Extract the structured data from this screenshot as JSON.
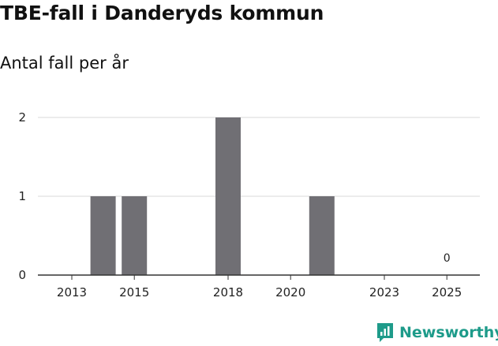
{
  "title": "TBE-fall i Danderyds kommun",
  "subtitle": "Antal fall per år",
  "colors": {
    "bar": "#706f74",
    "grid": "#d9d9d9",
    "axis": "#333333",
    "brand": "#1e9b8a"
  },
  "brand": {
    "name": "Newsworthy",
    "icon": "bar-chart-logo-icon"
  },
  "chart_data": {
    "type": "bar",
    "title": "TBE-fall i Danderyds kommun",
    "subtitle": "Antal fall per år",
    "xlabel": "",
    "ylabel": "",
    "x": [
      2013,
      2014,
      2015,
      2016,
      2017,
      2018,
      2019,
      2020,
      2021,
      2022,
      2023,
      2024,
      2025
    ],
    "values": [
      0,
      1,
      1,
      0,
      0,
      2,
      0,
      0,
      1,
      0,
      0,
      0,
      0
    ],
    "xticks": [
      2013,
      2015,
      2018,
      2020,
      2023,
      2025
    ],
    "yticks": [
      0,
      1,
      2
    ],
    "ylim": [
      0,
      2
    ],
    "grid": true,
    "annotations": [
      {
        "x": 2025,
        "text": "0"
      }
    ]
  }
}
